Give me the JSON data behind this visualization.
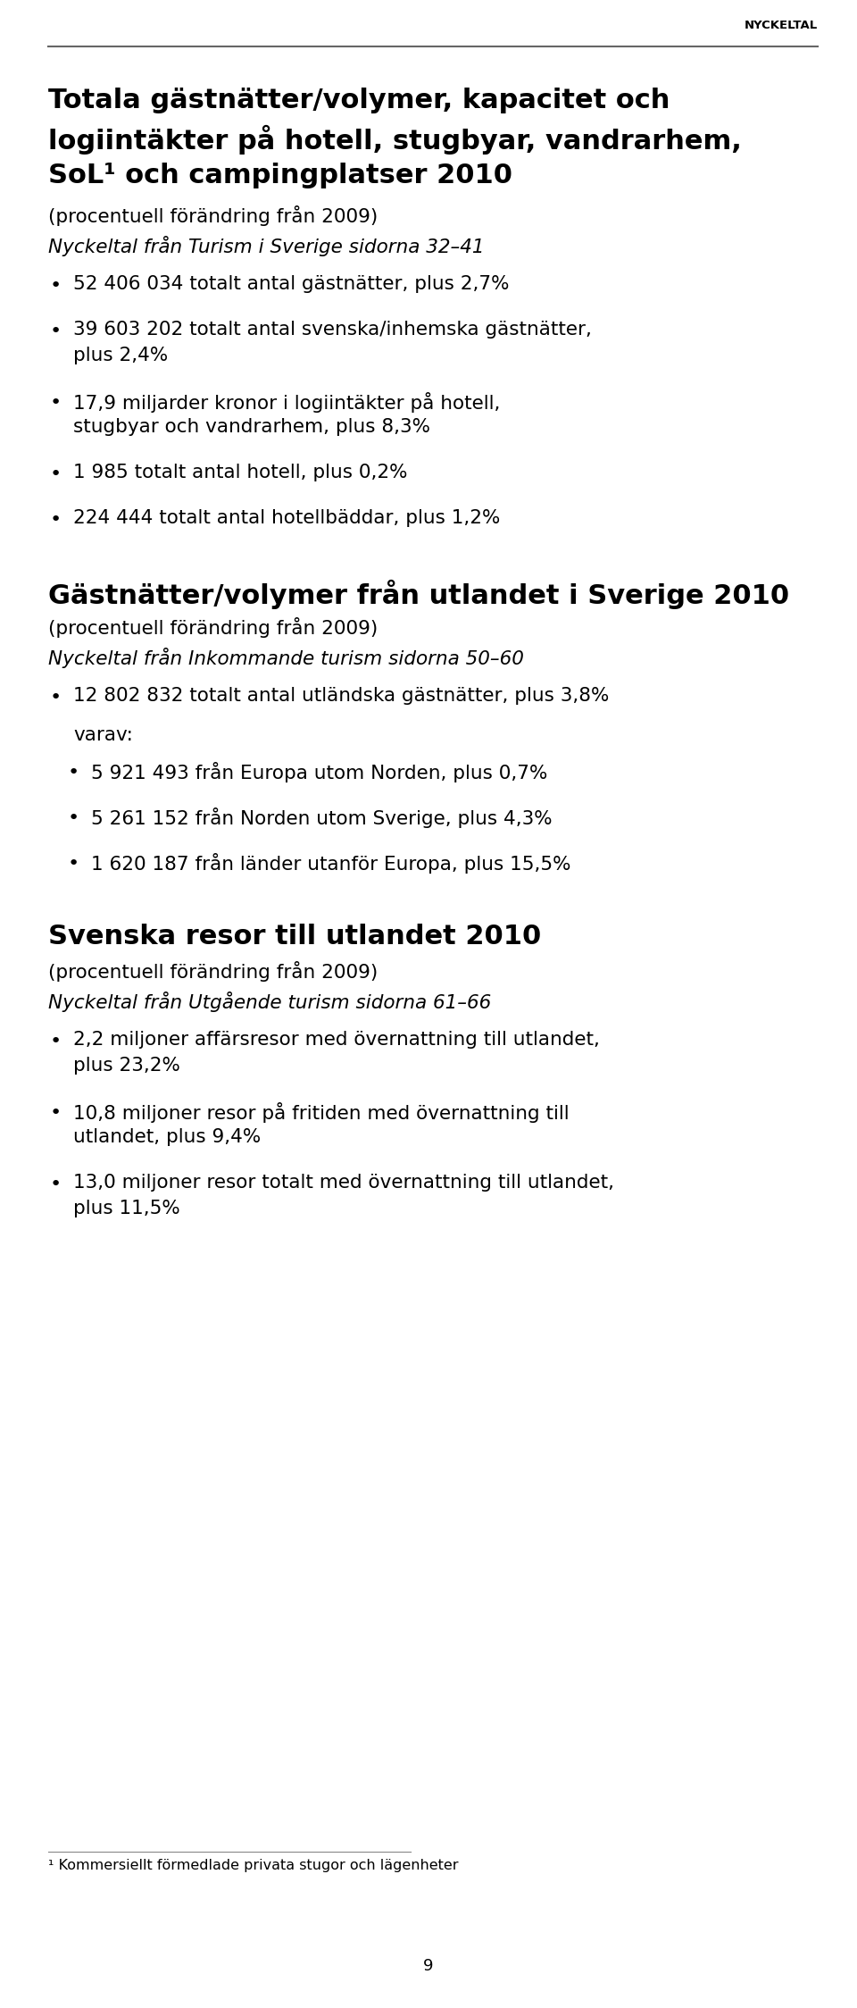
{
  "header_label": "NYCKELTAL",
  "header_line_color": "#666666",
  "background_color": "#ffffff",
  "text_color": "#000000",
  "page_number": "9",
  "section1_title_lines": [
    "Totala gästnätter/volymer, kapacitet och",
    "logiintäkter på hotell, stugbyar, vandrarhem,",
    "SoL¹ och campingplatser 2010"
  ],
  "section1_subtitle": "(procentuell förändring från 2009)",
  "section1_italic": "Nyckeltal från Turism i Sverige sidorna 32–41",
  "section1_bullets": [
    [
      "52 406 034 totalt antal gästnätter, plus 2,7%"
    ],
    [
      "39 603 202 totalt antal svenska/inhemska gästnätter,",
      "plus 2,4%"
    ],
    [
      "17,9 miljarder kronor i logiintäkter på hotell,",
      "stugbyar och vandrarhem, plus 8,3%"
    ],
    [
      "1 985 totalt antal hotell, plus 0,2%"
    ],
    [
      "224 444 totalt antal hotellbäddar, plus 1,2%"
    ]
  ],
  "section2_title": "Gästnätter/volymer från utlandet i Sverige 2010",
  "section2_subtitle": "(procentuell förändring från 2009)",
  "section2_italic": "Nyckeltal från Inkommande turism sidorna 50–60",
  "section2_intro": [
    "12 802 832 totalt antal utländska gästnätter, plus 3,8%"
  ],
  "section2_sub_intro": "varav:",
  "section2_bullets": [
    [
      "5 921 493 från Europa utom Norden, plus 0,7%"
    ],
    [
      "5 261 152 från Norden utom Sverige, plus 4,3%"
    ],
    [
      "1 620 187 från länder utanför Europa, plus 15,5%"
    ]
  ],
  "section3_title": "Svenska resor till utlandet 2010",
  "section3_subtitle": "(procentuell förändring från 2009)",
  "section3_italic": "Nyckeltal från Utgående turism sidorna 61–66",
  "section3_bullets": [
    [
      "2,2 miljoner affärsresor med övernattning till utlandet,",
      "plus 23,2%"
    ],
    [
      "10,8 miljoner resor på fritiden med övernattning till",
      "utlandet, plus 9,4%"
    ],
    [
      "13,0 miljoner resor totalt med övernattning till utlandet,",
      "plus 11,5%"
    ]
  ],
  "footnote": "¹ Kommersiellt förmedlade privata stugor och lägenheter"
}
